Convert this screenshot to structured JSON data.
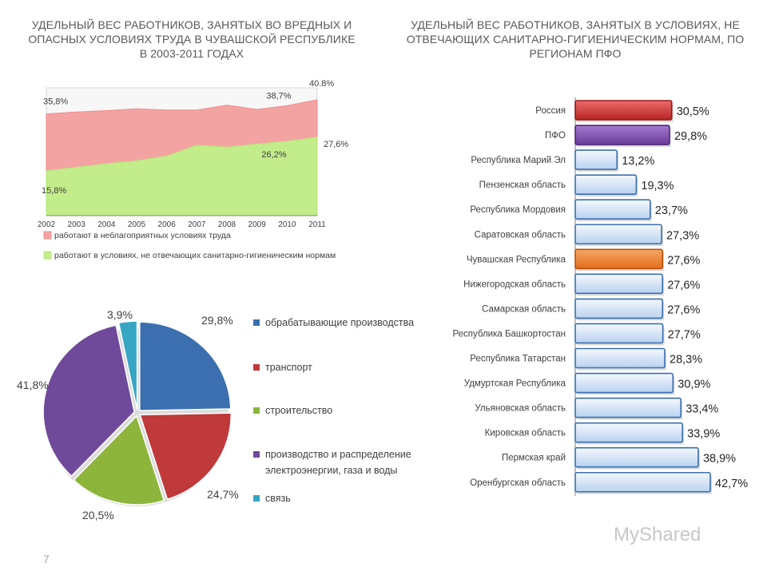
{
  "titles": {
    "left": "УДЕЛЬНЫЙ ВЕС РАБОТНИКОВ, ЗАНЯТЫХ ВО ВРЕДНЫХ И ОПАСНЫХ УСЛОВИЯХ ТРУДА В ЧУВАШСКОЙ РЕСПУБЛИКЕ В 2003-2011 ГОДАХ",
    "right": "УДЕЛЬНЫЙ ВЕС РАБОТНИКОВ, ЗАНЯТЫХ В УСЛОВИЯХ, НЕ ОТВЕЧАЮЩИХ САНИТАРНО-ГИГИЕНИЧЕСКИМ НОРМАМ, ПО РЕГИОНАМ ПФО"
  },
  "page_number": "7",
  "watermark": "MyShared",
  "chart_data": [
    {
      "type": "area",
      "categories": [
        "2002",
        "2003",
        "2004",
        "2005",
        "2006",
        "2007",
        "2008",
        "2009",
        "2010",
        "2011"
      ],
      "series": [
        {
          "name": "работают в неблагоприятных условиях труда",
          "color": "#f08c8c",
          "values": [
            35.8,
            36.5,
            37.0,
            37.6,
            37.2,
            37.2,
            38.9,
            37.4,
            38.7,
            40.8
          ],
          "labels": {
            "0": "35,8%",
            "8": "38,7%",
            "9": "40.8%"
          }
        },
        {
          "name": "работают в условиях, не отвечающих санитарно-гигиеническим нормам",
          "color": "#b6e878",
          "values": [
            15.8,
            17.0,
            18.3,
            19.3,
            21.0,
            24.8,
            24.1,
            25.2,
            26.2,
            27.6
          ],
          "labels": {
            "0": "15,8%",
            "8": "26,2%",
            "9": "27,6%"
          }
        }
      ],
      "ylim": [
        0,
        45
      ],
      "legend": "bottom"
    },
    {
      "type": "pie",
      "slices": [
        {
          "name": "обрабатывающие производства",
          "value": 29.8,
          "label": "29,8%",
          "color": "#3b6fb0"
        },
        {
          "name": "транспорт",
          "value": 24.7,
          "label": "24,7%",
          "color": "#c0393b"
        },
        {
          "name": "строительство",
          "value": 20.5,
          "label": "20,5%",
          "color": "#8db53c"
        },
        {
          "name": "производство и распределение электроэнергии, газа и воды",
          "value": 41.8,
          "label": "41,8%",
          "color": "#6f4a9a"
        },
        {
          "name": "связь",
          "value": 3.9,
          "label": "3,9%",
          "color": "#36a6c4"
        }
      ],
      "legend": "right"
    },
    {
      "type": "bar",
      "orientation": "horizontal",
      "categories": [
        "Россия",
        "ПФО",
        "Республика Марий Эл",
        "Пензенская область",
        "Республика Мордовия",
        "Саратовская область",
        "Чувашская Республика",
        "Нижегородская область",
        "Самарская область",
        "Республика Башкортостан",
        "Республика Татарстан",
        "Удмуртская Республика",
        "Ульяновская область",
        "Кировская область",
        "Пермская край",
        "Оренбургская область"
      ],
      "values": [
        30.5,
        29.8,
        13.2,
        19.3,
        23.7,
        27.3,
        27.6,
        27.6,
        27.6,
        27.7,
        28.3,
        30.9,
        33.4,
        33.9,
        38.9,
        42.7
      ],
      "labels": [
        "30,5%",
        "29,8%",
        "13,2%",
        "19,3%",
        "23,7%",
        "27,3%",
        "27,6%",
        "27,6%",
        "27,6%",
        "27,7%",
        "28,3%",
        "30,9%",
        "33,4%",
        "33,9%",
        "38,9%",
        "42,7%"
      ],
      "colors": {
        "default": "#dbe8f8",
        "Россия": "#d43c3c",
        "ПФО": "#8a55b8",
        "Чувашская Республика": "#f08a3a"
      }
    }
  ]
}
